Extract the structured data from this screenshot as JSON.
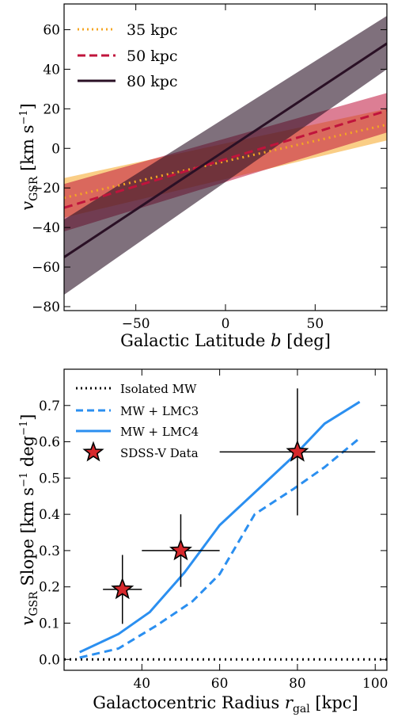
{
  "chart_data": [
    {
      "type": "line",
      "xlabel": "Galactic Latitude b [deg]",
      "ylabel": "v_GSR [km s^-1]",
      "xlim": [
        -90,
        90
      ],
      "ylim": [
        -82,
        73
      ],
      "xticks": [
        -50,
        0,
        50
      ],
      "yticks": [
        -80,
        -60,
        -40,
        -20,
        0,
        20,
        40,
        60
      ],
      "legend_position": "top-left",
      "series": [
        {
          "name": "35 kpc",
          "color": "#f5a623",
          "style": "dotted",
          "x": [
            -90,
            90
          ],
          "y": [
            -25,
            12
          ],
          "band_lower": [
            -35,
            4
          ],
          "band_upper": [
            -15,
            20
          ]
        },
        {
          "name": "50 kpc",
          "color": "#c0143c",
          "style": "dashed",
          "x": [
            -90,
            90
          ],
          "y": [
            -30,
            19
          ],
          "band_lower": [
            -42,
            8
          ],
          "band_upper": [
            -18,
            28
          ]
        },
        {
          "name": "80 kpc",
          "color": "#2a1025",
          "style": "solid",
          "x": [
            -90,
            90
          ],
          "y": [
            -55,
            53
          ],
          "band_lower": [
            -74,
            40
          ],
          "band_upper": [
            -36,
            67
          ]
        }
      ]
    },
    {
      "type": "line",
      "xlabel": "Galactocentric Radius r_gal [kpc]",
      "ylabel": "v_GSR Slope [km s^-1 deg^-1]",
      "xlim": [
        20,
        103
      ],
      "ylim": [
        -0.03,
        0.8
      ],
      "xticks": [
        40,
        60,
        80,
        100
      ],
      "yticks": [
        0.0,
        0.1,
        0.2,
        0.3,
        0.4,
        0.5,
        0.6,
        0.7
      ],
      "legend_position": "top-left",
      "series": [
        {
          "name": "Isolated MW",
          "color": "#000000",
          "style": "dotted",
          "x": [
            20,
            103
          ],
          "y": [
            0,
            0
          ]
        },
        {
          "name": "MW + LMC3",
          "color": "#2b8ff0",
          "style": "dashed",
          "x": [
            24,
            34,
            44,
            53,
            60,
            69,
            79,
            87,
            96
          ],
          "y": [
            0.005,
            0.03,
            0.095,
            0.16,
            0.235,
            0.4,
            0.47,
            0.53,
            0.61
          ]
        },
        {
          "name": "MW + LMC4",
          "color": "#2b8ff0",
          "style": "solid",
          "x": [
            24,
            34,
            42,
            51,
            60,
            70,
            79,
            87,
            96
          ],
          "y": [
            0.02,
            0.07,
            0.13,
            0.24,
            0.37,
            0.47,
            0.56,
            0.65,
            0.71
          ]
        }
      ],
      "points": {
        "name": "SDSS-V Data",
        "color": "#d6282c",
        "x": [
          35,
          50,
          80
        ],
        "y": [
          0.193,
          0.3,
          0.572
        ],
        "xerr": [
          5,
          10,
          20
        ],
        "yerr": [
          0.095,
          0.1,
          0.175
        ]
      }
    }
  ]
}
